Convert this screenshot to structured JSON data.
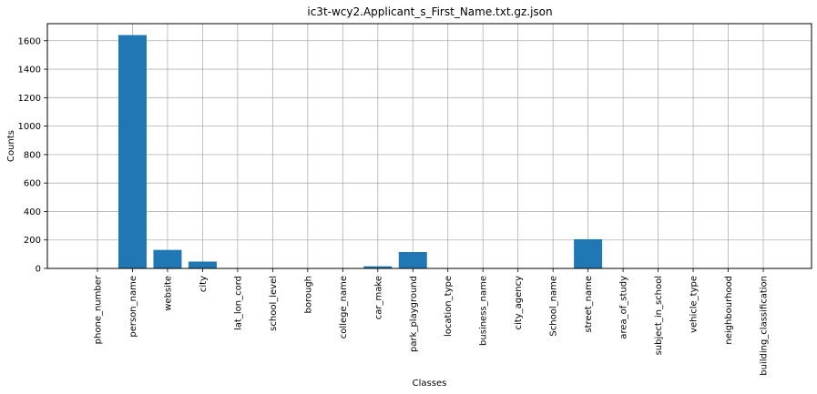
{
  "chart_data": {
    "type": "bar",
    "title": "ic3t-wcy2.Applicant_s_First_Name.txt.gz.json",
    "xlabel": "Classes",
    "ylabel": "Counts",
    "categories": [
      "phone_number",
      "person_name",
      "website",
      "city",
      "lat_lon_cord",
      "school_level",
      "borough",
      "college_name",
      "car_make",
      "park_playground",
      "location_type",
      "business_name",
      "city_agency",
      "School_name",
      "street_name",
      "area_of_study",
      "subject_in_school",
      "vehicle_type",
      "neighbourhood",
      "building_classification"
    ],
    "values": [
      0,
      1640,
      130,
      48,
      0,
      0,
      0,
      0,
      15,
      115,
      0,
      0,
      0,
      0,
      205,
      0,
      0,
      0,
      0,
      0
    ],
    "ylim": [
      0,
      1720
    ],
    "yticks": [
      0,
      200,
      400,
      600,
      800,
      1000,
      1200,
      1400,
      1600
    ],
    "grid": true,
    "bar_color": "#1f77b4"
  }
}
